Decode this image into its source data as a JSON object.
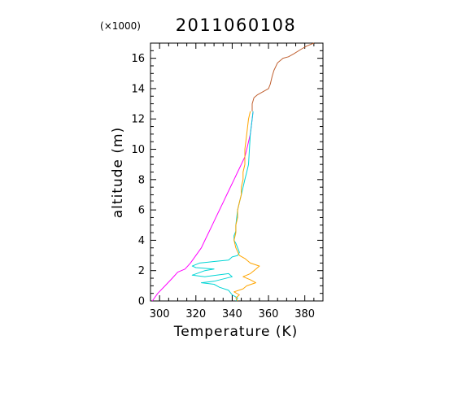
{
  "chart_data": {
    "type": "line",
    "title": "2011060108",
    "xlabel": "Temperature (K)",
    "ylabel": "altitude (m)",
    "y_multiplier": "(×1000)",
    "xlim": [
      295,
      390
    ],
    "ylim": [
      0,
      17
    ],
    "x_ticks": [
      300,
      320,
      340,
      360,
      380
    ],
    "y_ticks": [
      0,
      2,
      4,
      6,
      8,
      10,
      12,
      14,
      16
    ],
    "grid": false,
    "series": [
      {
        "color": "#ff00ff",
        "points": [
          [
            296,
            0
          ],
          [
            299,
            0.5
          ],
          [
            303,
            1.0
          ],
          [
            307,
            1.5
          ],
          [
            310,
            1.9
          ],
          [
            314,
            2.1
          ],
          [
            317,
            2.5
          ],
          [
            320,
            3.0
          ],
          [
            323,
            3.5
          ],
          [
            325,
            4.0
          ],
          [
            327,
            4.5
          ],
          [
            329,
            5.0
          ],
          [
            331,
            5.5
          ],
          [
            333,
            6.0
          ],
          [
            335,
            6.5
          ],
          [
            337,
            7.0
          ],
          [
            339,
            7.5
          ],
          [
            341,
            8.0
          ],
          [
            343,
            8.5
          ],
          [
            345,
            9.0
          ],
          [
            347,
            9.5
          ],
          [
            348,
            10.0
          ],
          [
            349,
            10.5
          ],
          [
            350,
            11.0
          ],
          [
            350.5,
            11.5
          ],
          [
            351,
            12.0
          ],
          [
            351.5,
            12.5
          ]
        ]
      },
      {
        "color": "#00d5d5",
        "points": [
          [
            342,
            0
          ],
          [
            343,
            0.2
          ],
          [
            340,
            0.4
          ],
          [
            338,
            0.7
          ],
          [
            333,
            0.9
          ],
          [
            330,
            1.1
          ],
          [
            323,
            1.2
          ],
          [
            330,
            1.3
          ],
          [
            340,
            1.6
          ],
          [
            338,
            1.8
          ],
          [
            325,
            1.6
          ],
          [
            318,
            1.7
          ],
          [
            325,
            2.0
          ],
          [
            330,
            2.1
          ],
          [
            320,
            2.2
          ],
          [
            318,
            2.3
          ],
          [
            322,
            2.5
          ],
          [
            330,
            2.6
          ],
          [
            338,
            2.7
          ],
          [
            340,
            2.9
          ],
          [
            343,
            3.0
          ],
          [
            344,
            3.2
          ],
          [
            343,
            3.5
          ],
          [
            342,
            3.8
          ],
          [
            341,
            4.0
          ],
          [
            341,
            4.3
          ],
          [
            342,
            4.6
          ],
          [
            342,
            5.0
          ],
          [
            342.5,
            5.5
          ],
          [
            343,
            6.0
          ],
          [
            344,
            6.5
          ],
          [
            345,
            7.0
          ],
          [
            346,
            7.5
          ],
          [
            347,
            8.0
          ],
          [
            348,
            8.5
          ],
          [
            349,
            9.0
          ],
          [
            349.5,
            10.0
          ],
          [
            350,
            11.0
          ],
          [
            351,
            12.0
          ],
          [
            351.5,
            12.5
          ]
        ]
      },
      {
        "color": "#ffa500",
        "points": [
          [
            343,
            0
          ],
          [
            342,
            0.2
          ],
          [
            344,
            0.4
          ],
          [
            341,
            0.6
          ],
          [
            346,
            0.8
          ],
          [
            348,
            1.0
          ],
          [
            353,
            1.2
          ],
          [
            350,
            1.4
          ],
          [
            346,
            1.6
          ],
          [
            350,
            1.8
          ],
          [
            352,
            2.0
          ],
          [
            355,
            2.3
          ],
          [
            350,
            2.5
          ],
          [
            347,
            2.8
          ],
          [
            344,
            3.0
          ],
          [
            342,
            3.5
          ],
          [
            341,
            4.0
          ],
          [
            342,
            4.5
          ],
          [
            342,
            5.0
          ],
          [
            343,
            5.5
          ],
          [
            343,
            6.0
          ],
          [
            344,
            6.5
          ],
          [
            345,
            7.0
          ],
          [
            345,
            7.5
          ],
          [
            346,
            8.0
          ],
          [
            346,
            8.5
          ],
          [
            347,
            9.0
          ],
          [
            347,
            10.0
          ],
          [
            348,
            11.0
          ],
          [
            349,
            12.0
          ],
          [
            350,
            12.5
          ]
        ]
      },
      {
        "color": "#c06030",
        "points": [
          [
            351,
            12.5
          ],
          [
            351,
            13.0
          ],
          [
            352,
            13.4
          ],
          [
            354,
            13.6
          ],
          [
            357,
            13.8
          ],
          [
            360,
            14.0
          ],
          [
            361,
            14.3
          ],
          [
            362,
            14.8
          ],
          [
            363,
            15.2
          ],
          [
            365,
            15.7
          ],
          [
            368,
            16.0
          ],
          [
            371,
            16.1
          ],
          [
            374,
            16.3
          ],
          [
            378,
            16.6
          ],
          [
            381,
            16.8
          ],
          [
            385,
            17.0
          ]
        ]
      }
    ]
  }
}
